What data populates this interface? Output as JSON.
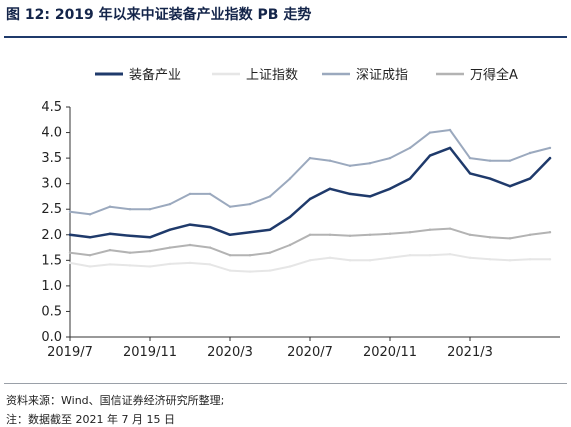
{
  "figure": {
    "title": "图 12:  2019 年以来中证装备产业指数 PB 走势",
    "source": "资料来源：Wind、国信证券经济研究所整理;",
    "note": "注：数据截至 2021 年 7 月 15 日"
  },
  "chart_data": {
    "type": "line",
    "title": "",
    "xlabel": "",
    "ylabel": "",
    "ylim": [
      0.0,
      4.5
    ],
    "yticks": [
      "0.0",
      "0.5",
      "1.0",
      "1.5",
      "2.0",
      "2.5",
      "3.0",
      "3.5",
      "4.0",
      "4.5"
    ],
    "xticks": [
      "2019/7",
      "2019/11",
      "2020/3",
      "2020/7",
      "2020/11",
      "2021/3"
    ],
    "x_start": "2019/7",
    "x_end": "2021/7",
    "legend_position": "top",
    "grid": false,
    "x": [
      "2019/7",
      "2019/8",
      "2019/9",
      "2019/10",
      "2019/11",
      "2019/12",
      "2020/1",
      "2020/2",
      "2020/3",
      "2020/4",
      "2020/5",
      "2020/6",
      "2020/7",
      "2020/8",
      "2020/9",
      "2020/10",
      "2020/11",
      "2020/12",
      "2021/1",
      "2021/2",
      "2021/3",
      "2021/4",
      "2021/5",
      "2021/6",
      "2021/7"
    ],
    "series": [
      {
        "name": "装备产业",
        "color": "#1f3a6b",
        "width": 2.5,
        "values": [
          2.0,
          1.95,
          2.02,
          1.98,
          1.95,
          2.1,
          2.2,
          2.15,
          2.0,
          2.05,
          2.1,
          2.35,
          2.7,
          2.9,
          2.8,
          2.75,
          2.9,
          3.1,
          3.55,
          3.7,
          3.2,
          3.1,
          2.95,
          3.1,
          3.5
        ]
      },
      {
        "name": "上证指数",
        "color": "#e6e6e6",
        "width": 2,
        "values": [
          1.45,
          1.38,
          1.42,
          1.4,
          1.38,
          1.43,
          1.45,
          1.42,
          1.3,
          1.28,
          1.3,
          1.38,
          1.5,
          1.55,
          1.5,
          1.5,
          1.55,
          1.6,
          1.6,
          1.62,
          1.55,
          1.52,
          1.5,
          1.52,
          1.52
        ]
      },
      {
        "name": "深证成指",
        "color": "#9ba9be",
        "width": 2,
        "values": [
          2.45,
          2.4,
          2.55,
          2.5,
          2.5,
          2.6,
          2.8,
          2.8,
          2.55,
          2.6,
          2.75,
          3.1,
          3.5,
          3.45,
          3.35,
          3.4,
          3.5,
          3.7,
          4.0,
          4.05,
          3.5,
          3.45,
          3.45,
          3.6,
          3.7
        ]
      },
      {
        "name": "万得全A",
        "color": "#b3b3b3",
        "width": 2,
        "values": [
          1.65,
          1.6,
          1.7,
          1.65,
          1.68,
          1.75,
          1.8,
          1.75,
          1.6,
          1.6,
          1.65,
          1.8,
          2.0,
          2.0,
          1.98,
          2.0,
          2.02,
          2.05,
          2.1,
          2.12,
          2.0,
          1.95,
          1.93,
          2.0,
          2.05
        ]
      }
    ]
  }
}
